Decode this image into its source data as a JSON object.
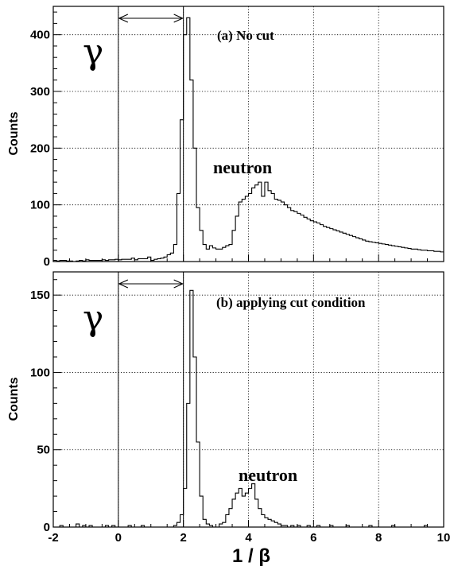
{
  "chart_data": [
    {
      "type": "histogram",
      "panel_label": "(a) No cut",
      "ylabel": "Counts",
      "xlim": [
        -2,
        10
      ],
      "ylim": [
        0,
        450
      ],
      "yticks": [
        0,
        100,
        200,
        300,
        400
      ],
      "xticks": [
        -2,
        0,
        2,
        4,
        6,
        8,
        10
      ],
      "grid": true,
      "cut_window": [
        0,
        2
      ],
      "annotations": [
        "γ",
        "neutron"
      ],
      "bin_width": 0.1,
      "bin_start": -2,
      "values": [
        2,
        1,
        2,
        2,
        1,
        1,
        0,
        1,
        2,
        1,
        3,
        2,
        2,
        2,
        2,
        3,
        2,
        3,
        3,
        4,
        3,
        4,
        4,
        4,
        6,
        3,
        5,
        5,
        5,
        8,
        2,
        4,
        5,
        6,
        8,
        12,
        15,
        30,
        120,
        250,
        400,
        430,
        320,
        200,
        95,
        55,
        30,
        22,
        28,
        24,
        22,
        22,
        25,
        28,
        30,
        55,
        80,
        105,
        110,
        115,
        120,
        130,
        135,
        140,
        115,
        140,
        125,
        120,
        110,
        108,
        105,
        100,
        95,
        90,
        88,
        85,
        82,
        78,
        75,
        72,
        70,
        68,
        65,
        62,
        60,
        58,
        56,
        54,
        52,
        50,
        48,
        46,
        44,
        42,
        40,
        38,
        36,
        35,
        34,
        33,
        32,
        31,
        30,
        29,
        28,
        27,
        26,
        25,
        24,
        23,
        22,
        22,
        21,
        20,
        20,
        19,
        19,
        18,
        18,
        17,
        17,
        16,
        16
      ]
    },
    {
      "type": "histogram",
      "panel_label": "(b) applying cut condition",
      "ylabel": "Counts",
      "xlabel": "1 / β",
      "xlim": [
        -2,
        10
      ],
      "ylim": [
        0,
        165
      ],
      "yticks": [
        0,
        50,
        100,
        150
      ],
      "xticks": [
        -2,
        0,
        2,
        4,
        6,
        8,
        10
      ],
      "xtick_labels": [
        "-2",
        "0",
        "2",
        "4",
        "6",
        "8",
        "10"
      ],
      "grid": true,
      "cut_window": [
        0,
        2
      ],
      "annotations": [
        "γ",
        "neutron"
      ],
      "bin_width": 0.1,
      "bin_start": -2,
      "values": [
        0,
        0,
        1,
        0,
        0,
        0,
        0,
        2,
        0,
        1,
        0,
        1,
        0,
        0,
        0,
        0,
        1,
        0,
        1,
        0,
        0,
        0,
        0,
        1,
        0,
        0,
        0,
        1,
        0,
        0,
        0,
        0,
        0,
        0,
        0,
        0,
        0,
        1,
        3,
        8,
        25,
        80,
        153,
        110,
        55,
        20,
        5,
        2,
        1,
        0,
        0,
        2,
        3,
        8,
        12,
        18,
        22,
        25,
        20,
        22,
        25,
        28,
        18,
        12,
        8,
        6,
        5,
        4,
        3,
        2,
        1,
        1,
        0,
        1,
        0,
        1,
        0,
        0,
        1,
        0,
        0,
        1,
        0,
        0,
        0,
        1,
        0,
        0,
        0,
        0,
        1,
        0,
        0,
        0,
        0,
        0,
        0,
        1,
        0,
        0,
        0,
        0,
        0,
        0,
        1,
        0,
        0,
        0,
        0,
        0,
        0,
        0,
        0,
        0,
        1,
        0,
        0,
        0,
        0,
        0,
        0,
        0,
        0
      ]
    }
  ]
}
